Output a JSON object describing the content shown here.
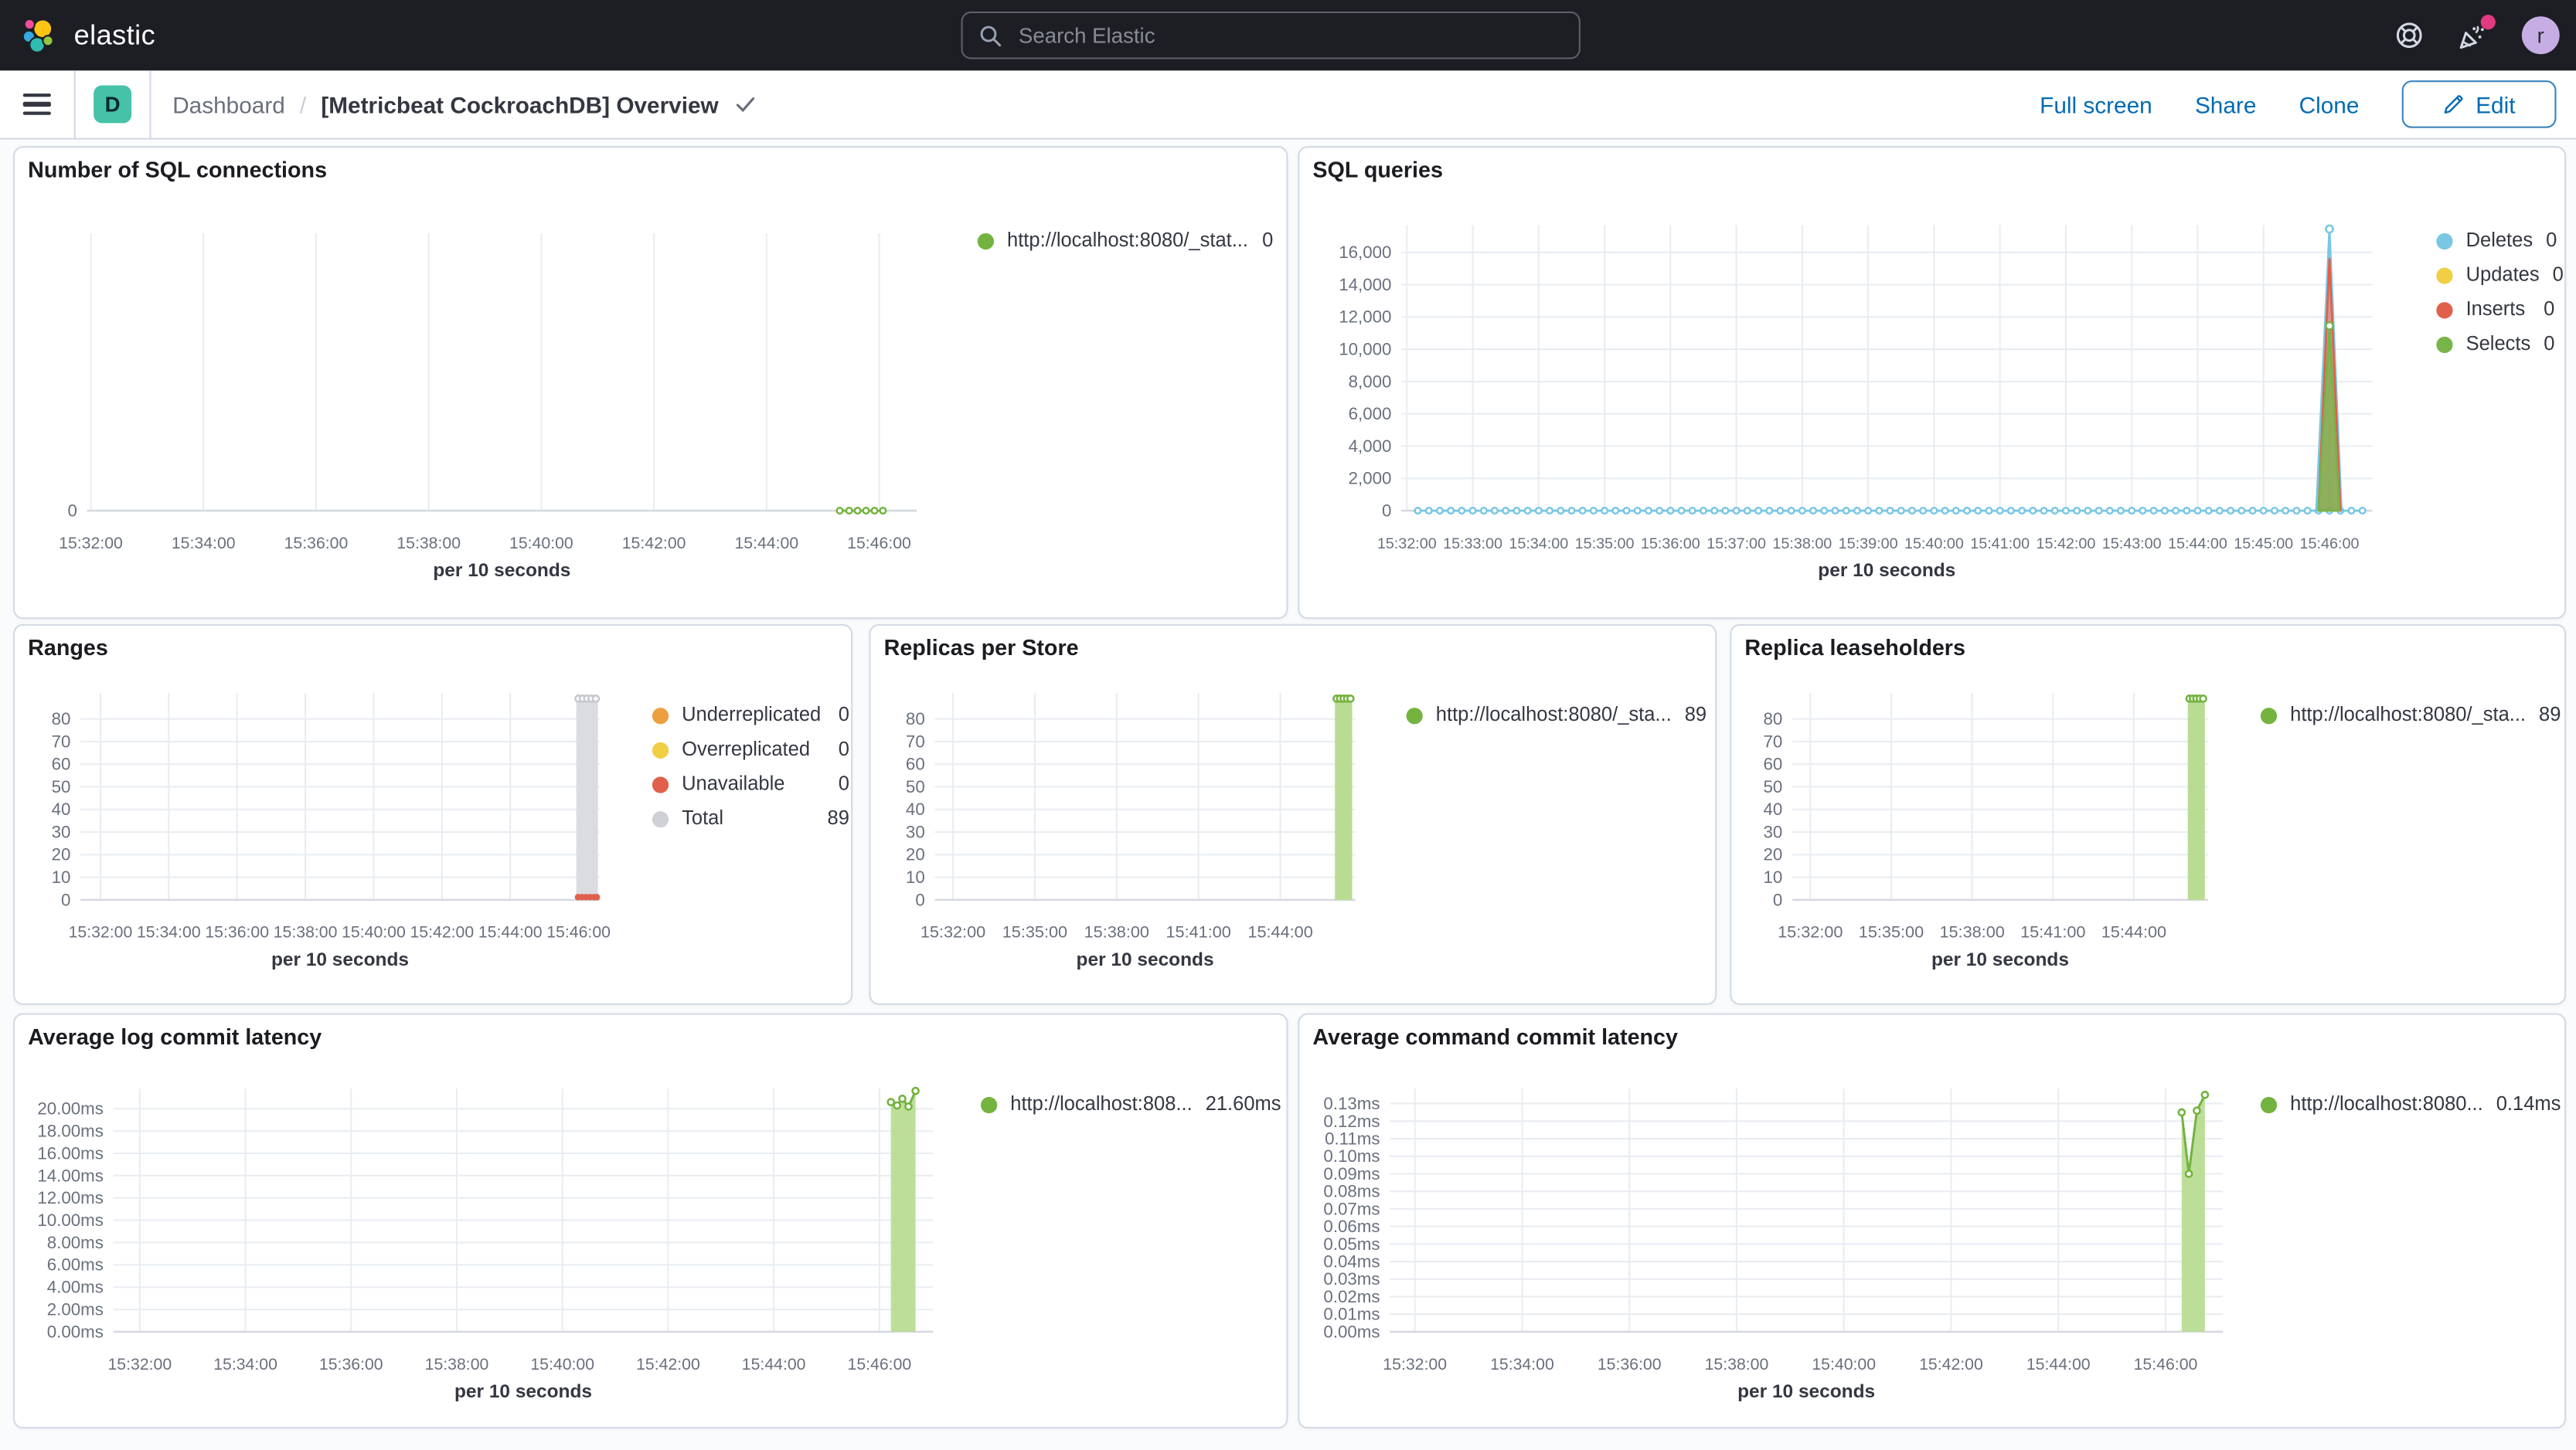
{
  "app": {
    "brand": "elastic"
  },
  "topbar": {
    "search_placeholder": "Search Elastic",
    "avatar_letter": "r"
  },
  "breadcrumbs": {
    "app_badge": "D",
    "root": "Dashboard",
    "separator": "/",
    "current": "[Metricbeat CockroachDB] Overview"
  },
  "actions": {
    "full_screen": "Full screen",
    "share": "Share",
    "clone": "Clone",
    "edit": "Edit"
  },
  "colors": {
    "topbar_bg": "#1d1e24",
    "link_blue": "#006bb4",
    "badge_teal": "#45c2a8",
    "badge_pink": "#e23a80",
    "green": "#74b340",
    "green_fill": "#b9dc92",
    "blue": "#79c7e3",
    "yellow": "#f0cf46",
    "red": "#e0604b",
    "orange": "#ed9e3e",
    "gray_bar": "#dbdce0",
    "gray_dot": "#c6c8cd"
  },
  "chart_data": [
    {
      "id": "number-of-sql-connections",
      "type": "line",
      "title": "Number of SQL connections",
      "xlabel": "per 10 seconds",
      "x_domain": [
        -4,
        880
      ],
      "ylim": [
        0,
        10
      ],
      "x_ticks": [
        {
          "label": "15:32:00",
          "t": 0
        },
        {
          "label": "15:34:00",
          "t": 120
        },
        {
          "label": "15:36:00",
          "t": 240
        },
        {
          "label": "15:38:00",
          "t": 360
        },
        {
          "label": "15:40:00",
          "t": 480
        },
        {
          "label": "15:42:00",
          "t": 600
        },
        {
          "label": "15:44:00",
          "t": 720
        },
        {
          "label": "15:46:00",
          "t": 840
        }
      ],
      "y_ticks": [
        {
          "label": "0",
          "v": 0
        }
      ],
      "series": [
        {
          "name": "http://localhost:8080/_stat...",
          "kind": "dot-line",
          "color": "#74b340",
          "points": [
            [
              798,
              0
            ],
            [
              808,
              0
            ],
            [
              817,
              0
            ],
            [
              826,
              0
            ],
            [
              835,
              0
            ],
            [
              844,
              0
            ]
          ]
        }
      ],
      "legend": [
        {
          "label": "http://localhost:8080/_stat...",
          "value": "0",
          "color": "#74b340"
        }
      ]
    },
    {
      "id": "sql-queries",
      "type": "area",
      "title": "SQL queries",
      "xlabel": "per 10 seconds",
      "x_domain": [
        -5,
        879
      ],
      "ylim": [
        0,
        17700
      ],
      "x_ticks": [
        {
          "label": "15:32:00",
          "t": 0
        },
        {
          "label": "15:33:00",
          "t": 60
        },
        {
          "label": "15:34:00",
          "t": 120
        },
        {
          "label": "15:35:00",
          "t": 180
        },
        {
          "label": "15:36:00",
          "t": 240
        },
        {
          "label": "15:37:00",
          "t": 300
        },
        {
          "label": "15:38:00",
          "t": 360
        },
        {
          "label": "15:39:00",
          "t": 420
        },
        {
          "label": "15:40:00",
          "t": 480
        },
        {
          "label": "15:41:00",
          "t": 540
        },
        {
          "label": "15:42:00",
          "t": 600
        },
        {
          "label": "15:43:00",
          "t": 660
        },
        {
          "label": "15:44:00",
          "t": 720
        },
        {
          "label": "15:45:00",
          "t": 780
        },
        {
          "label": "15:46:00",
          "t": 840
        }
      ],
      "y_ticks": [
        {
          "label": "16,000",
          "v": 16000
        },
        {
          "label": "14,000",
          "v": 14000
        },
        {
          "label": "12,000",
          "v": 12000
        },
        {
          "label": "10,000",
          "v": 10000
        },
        {
          "label": "8,000",
          "v": 8000
        },
        {
          "label": "6,000",
          "v": 6000
        },
        {
          "label": "4,000",
          "v": 4000
        },
        {
          "label": "2,000",
          "v": 2000
        },
        {
          "label": "0",
          "v": 0
        }
      ],
      "series": [
        {
          "name": "Deletes",
          "kind": "flat-dot-line",
          "color": "#79c7e3",
          "v": 0,
          "t0": 6,
          "t1": 871,
          "marker_step": 10
        },
        {
          "name": "Deletes",
          "kind": "spike",
          "color": "#79c7e3",
          "fill_opacity": 0.4,
          "base": [
            828,
            851
          ],
          "peak": [
            840,
            17450
          ],
          "marker": true
        },
        {
          "name": "Inserts",
          "kind": "spike",
          "color": "#e0604b",
          "fill_opacity": 0.55,
          "base": [
            830,
            850
          ],
          "peak": [
            840,
            15600
          ],
          "marker": false
        },
        {
          "name": "Selects",
          "kind": "spike",
          "color": "#77b449",
          "fill_opacity": 0.75,
          "base": [
            830,
            849
          ],
          "peak": [
            840,
            11450
          ],
          "marker": true
        }
      ],
      "legend": [
        {
          "label": "Deletes",
          "value": "0",
          "color": "#79c7e3"
        },
        {
          "label": "Updates",
          "value": "0",
          "color": "#f0cf46"
        },
        {
          "label": "Inserts",
          "value": "0",
          "color": "#e0604b"
        },
        {
          "label": "Selects",
          "value": "0",
          "color": "#77b449"
        }
      ]
    },
    {
      "id": "ranges",
      "type": "bar",
      "title": "Ranges",
      "xlabel": "per 10 seconds",
      "x_domain": [
        -35,
        877
      ],
      "ylim": [
        0,
        91.5
      ],
      "x_ticks": [
        {
          "label": "15:32:00",
          "t": 0
        },
        {
          "label": "15:34:00",
          "t": 120
        },
        {
          "label": "15:36:00",
          "t": 240
        },
        {
          "label": "15:38:00",
          "t": 360
        },
        {
          "label": "15:40:00",
          "t": 480
        },
        {
          "label": "15:42:00",
          "t": 600
        },
        {
          "label": "15:44:00",
          "t": 720
        },
        {
          "label": "15:46:00",
          "t": 840
        }
      ],
      "y_ticks": [
        {
          "label": "80",
          "v": 80
        },
        {
          "label": "70",
          "v": 70
        },
        {
          "label": "60",
          "v": 60
        },
        {
          "label": "50",
          "v": 50
        },
        {
          "label": "40",
          "v": 40
        },
        {
          "label": "30",
          "v": 30
        },
        {
          "label": "20",
          "v": 20
        },
        {
          "label": "10",
          "v": 10
        },
        {
          "label": "0",
          "v": 0
        }
      ],
      "series": [
        {
          "name": "Total",
          "kind": "bar",
          "color": "#dbdce0",
          "t0": 836,
          "t1": 874,
          "v": 89,
          "top_dots": 5,
          "dot_color": "#c6c8cd"
        },
        {
          "name": "Unavailable",
          "kind": "dots",
          "color": "#e0604b",
          "v": 1.2,
          "ts": [
            839,
            846,
            853,
            860,
            867,
            872
          ]
        }
      ],
      "legend": [
        {
          "label": "Underreplicated",
          "value": "0",
          "color": "#ed9e3e"
        },
        {
          "label": "Overreplicated",
          "value": "0",
          "color": "#f0cf46"
        },
        {
          "label": "Unavailable",
          "value": "0",
          "color": "#e0604b"
        },
        {
          "label": "Total",
          "value": "89",
          "color": "#cfd1d6"
        }
      ]
    },
    {
      "id": "replicas-per-store",
      "type": "bar",
      "title": "Replicas per Store",
      "xlabel": "per 10 seconds",
      "x_domain": [
        -40,
        885
      ],
      "ylim": [
        0,
        91.5
      ],
      "x_ticks": [
        {
          "label": "15:32:00",
          "t": 0
        },
        {
          "label": "15:35:00",
          "t": 180
        },
        {
          "label": "15:38:00",
          "t": 360
        },
        {
          "label": "15:41:00",
          "t": 540
        },
        {
          "label": "15:44:00",
          "t": 720
        }
      ],
      "y_ticks": [
        {
          "label": "80",
          "v": 80
        },
        {
          "label": "70",
          "v": 70
        },
        {
          "label": "60",
          "v": 60
        },
        {
          "label": "50",
          "v": 50
        },
        {
          "label": "40",
          "v": 40
        },
        {
          "label": "30",
          "v": 30
        },
        {
          "label": "20",
          "v": 20
        },
        {
          "label": "10",
          "v": 10
        },
        {
          "label": "0",
          "v": 0
        }
      ],
      "series": [
        {
          "name": "http://localhost:8080/_sta...",
          "kind": "bar",
          "color": "#b9dc92",
          "t0": 840,
          "t1": 878,
          "v": 89,
          "top_dots": 5,
          "dot_color": "#74b340"
        }
      ],
      "legend": [
        {
          "label": "http://localhost:8080/_sta...",
          "value": "89",
          "color": "#74b340"
        }
      ]
    },
    {
      "id": "replica-leaseholders",
      "type": "bar",
      "title": "Replica leaseholders",
      "xlabel": "per 10 seconds",
      "x_domain": [
        -40,
        885
      ],
      "ylim": [
        0,
        91.5
      ],
      "x_ticks": [
        {
          "label": "15:32:00",
          "t": 0
        },
        {
          "label": "15:35:00",
          "t": 180
        },
        {
          "label": "15:38:00",
          "t": 360
        },
        {
          "label": "15:41:00",
          "t": 540
        },
        {
          "label": "15:44:00",
          "t": 720
        }
      ],
      "y_ticks": [
        {
          "label": "80",
          "v": 80
        },
        {
          "label": "70",
          "v": 70
        },
        {
          "label": "60",
          "v": 60
        },
        {
          "label": "50",
          "v": 50
        },
        {
          "label": "40",
          "v": 40
        },
        {
          "label": "30",
          "v": 30
        },
        {
          "label": "20",
          "v": 20
        },
        {
          "label": "10",
          "v": 10
        },
        {
          "label": "0",
          "v": 0
        }
      ],
      "series": [
        {
          "name": "http://localhost:8080/_sta...",
          "kind": "bar",
          "color": "#b9dc92",
          "t0": 840,
          "t1": 878,
          "v": 89,
          "top_dots": 5,
          "dot_color": "#74b340"
        }
      ],
      "legend": [
        {
          "label": "http://localhost:8080/_sta...",
          "value": "89",
          "color": "#74b340"
        }
      ]
    },
    {
      "id": "average-log-commit-latency",
      "type": "area",
      "title": "Average log commit latency",
      "xlabel": "per 10 seconds",
      "x_domain": [
        -30,
        901
      ],
      "ylim": [
        0,
        21.8
      ],
      "x_ticks": [
        {
          "label": "15:32:00",
          "t": 0
        },
        {
          "label": "15:34:00",
          "t": 120
        },
        {
          "label": "15:36:00",
          "t": 240
        },
        {
          "label": "15:38:00",
          "t": 360
        },
        {
          "label": "15:40:00",
          "t": 480
        },
        {
          "label": "15:42:00",
          "t": 600
        },
        {
          "label": "15:44:00",
          "t": 720
        },
        {
          "label": "15:46:00",
          "t": 840
        }
      ],
      "y_ticks": [
        {
          "label": "20.00ms",
          "v": 20
        },
        {
          "label": "18.00ms",
          "v": 18
        },
        {
          "label": "16.00ms",
          "v": 16
        },
        {
          "label": "14.00ms",
          "v": 14
        },
        {
          "label": "12.00ms",
          "v": 12
        },
        {
          "label": "10.00ms",
          "v": 10
        },
        {
          "label": "8.00ms",
          "v": 8
        },
        {
          "label": "6.00ms",
          "v": 6
        },
        {
          "label": "4.00ms",
          "v": 4
        },
        {
          "label": "2.00ms",
          "v": 2
        },
        {
          "label": "0.00ms",
          "v": 0
        }
      ],
      "series": [
        {
          "name": "http://localhost:808...",
          "kind": "area-line",
          "color": "#74b340",
          "fill": "#b9dc92",
          "points": [
            [
              853,
              20.6
            ],
            [
              860,
              20.3
            ],
            [
              866,
              20.9
            ],
            [
              873,
              20.2
            ],
            [
              881,
              21.6
            ]
          ]
        }
      ],
      "legend": [
        {
          "label": "http://localhost:808...",
          "value": "21.60ms",
          "color": "#74b340"
        }
      ]
    },
    {
      "id": "average-command-commit-latency",
      "type": "area",
      "title": "Average command commit latency",
      "xlabel": "per 10 seconds",
      "x_domain": [
        -28,
        904
      ],
      "ylim": [
        0,
        0.1385
      ],
      "x_ticks": [
        {
          "label": "15:32:00",
          "t": 0
        },
        {
          "label": "15:34:00",
          "t": 120
        },
        {
          "label": "15:36:00",
          "t": 240
        },
        {
          "label": "15:38:00",
          "t": 360
        },
        {
          "label": "15:40:00",
          "t": 480
        },
        {
          "label": "15:42:00",
          "t": 600
        },
        {
          "label": "15:44:00",
          "t": 720
        },
        {
          "label": "15:46:00",
          "t": 840
        }
      ],
      "y_ticks": [
        {
          "label": "0.13ms",
          "v": 0.13
        },
        {
          "label": "0.12ms",
          "v": 0.12
        },
        {
          "label": "0.11ms",
          "v": 0.11
        },
        {
          "label": "0.10ms",
          "v": 0.1
        },
        {
          "label": "0.09ms",
          "v": 0.09
        },
        {
          "label": "0.08ms",
          "v": 0.08
        },
        {
          "label": "0.07ms",
          "v": 0.07
        },
        {
          "label": "0.06ms",
          "v": 0.06
        },
        {
          "label": "0.05ms",
          "v": 0.05
        },
        {
          "label": "0.04ms",
          "v": 0.04
        },
        {
          "label": "0.03ms",
          "v": 0.03
        },
        {
          "label": "0.02ms",
          "v": 0.02
        },
        {
          "label": "0.01ms",
          "v": 0.01
        },
        {
          "label": "0.00ms",
          "v": 0
        }
      ],
      "series": [
        {
          "name": "http://localhost:8080...",
          "kind": "area-line",
          "color": "#74b340",
          "fill": "#b9dc92",
          "points": [
            [
              858,
              0.125
            ],
            [
              866,
              0.09
            ],
            [
              875,
              0.126
            ],
            [
              884,
              0.135
            ]
          ]
        }
      ],
      "legend": [
        {
          "label": "http://localhost:8080...",
          "value": "0.14ms",
          "color": "#74b340"
        }
      ]
    }
  ]
}
